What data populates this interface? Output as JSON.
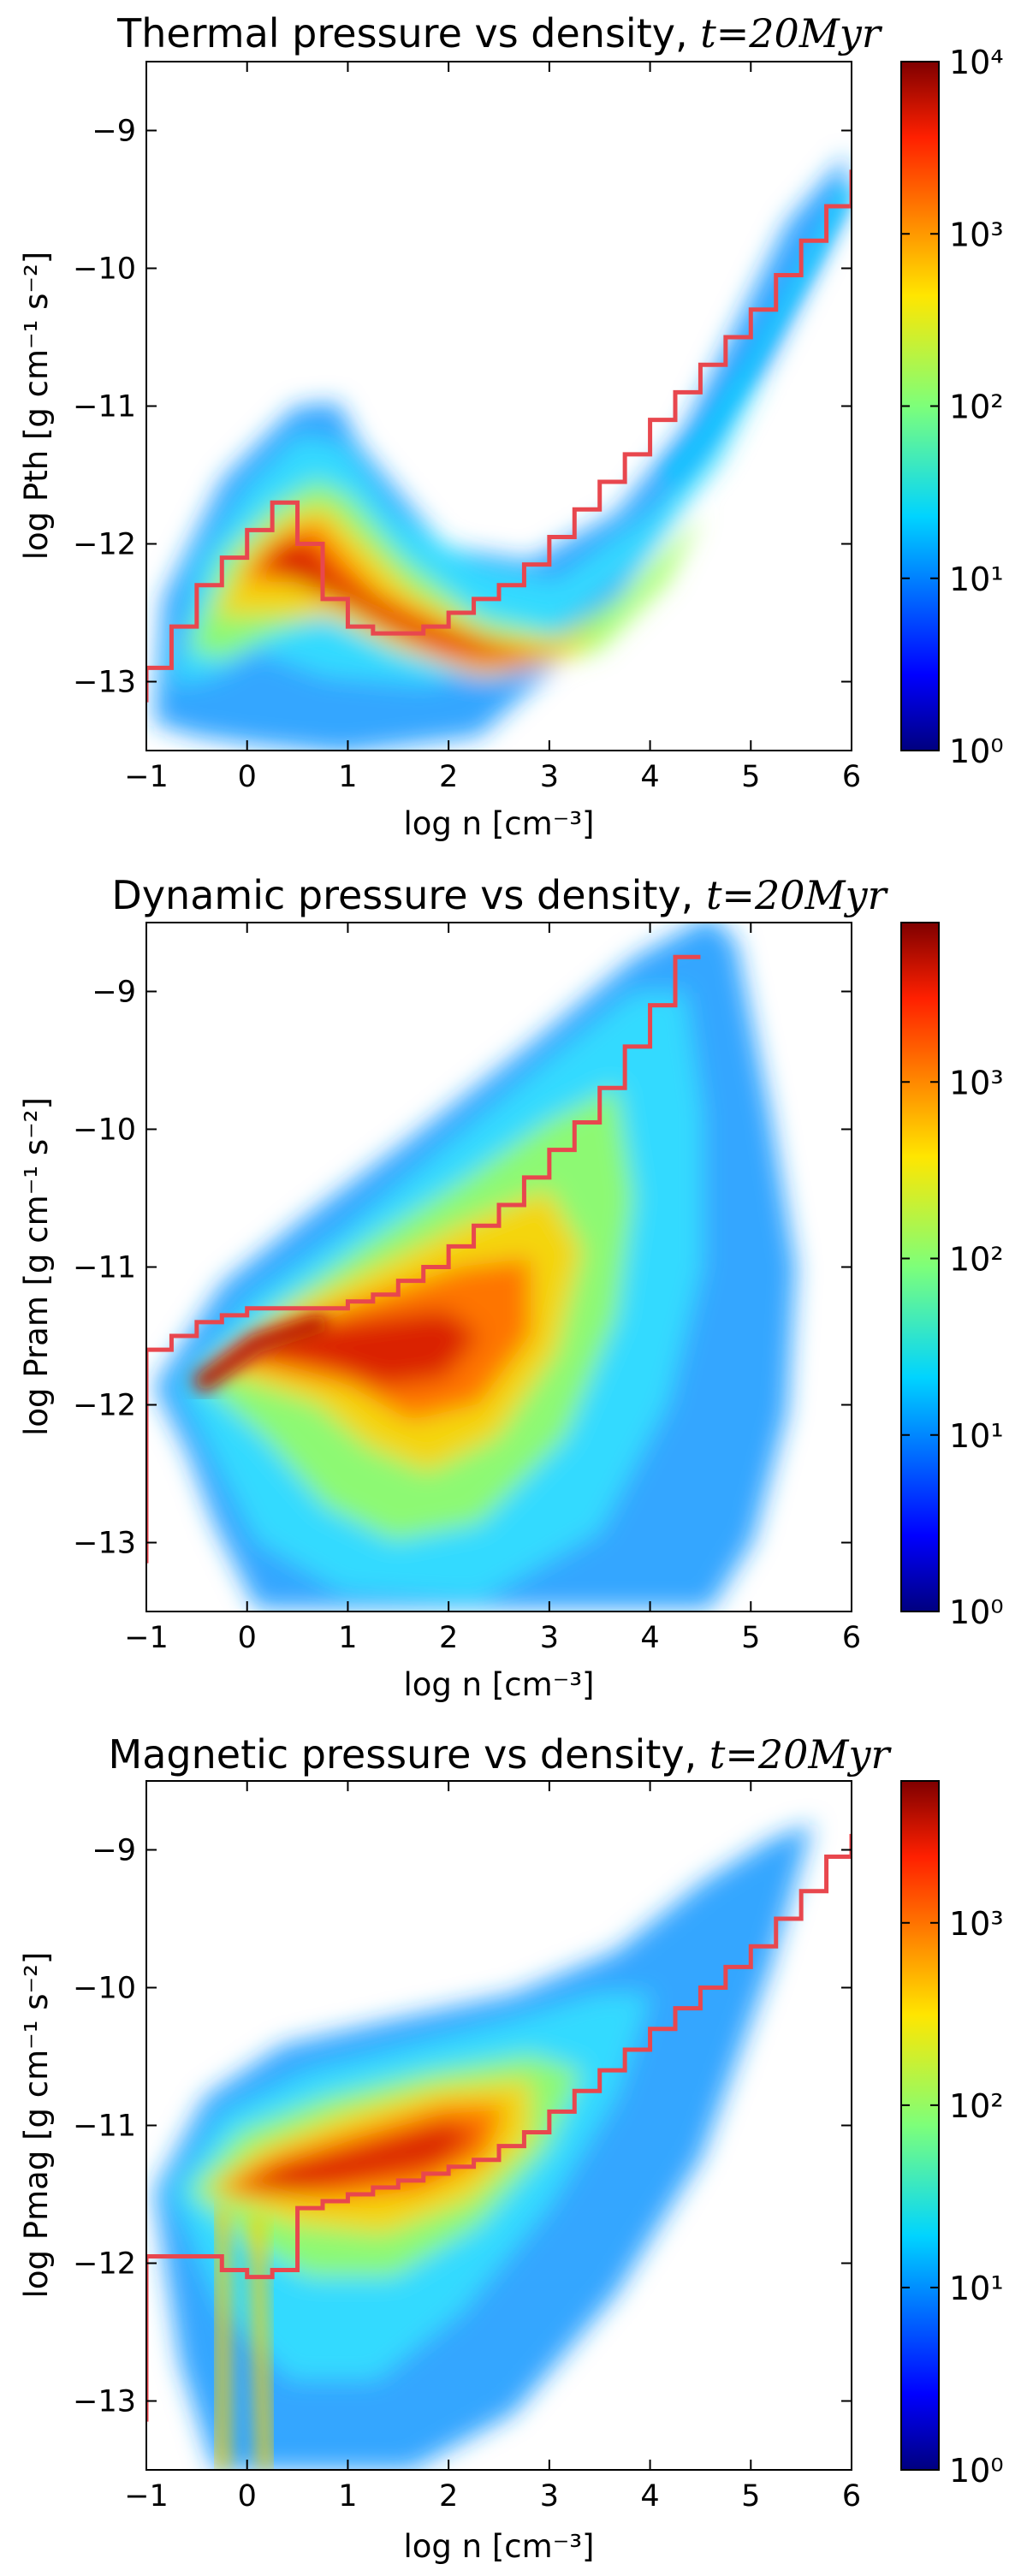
{
  "chart_data": [
    {
      "type": "heatmap",
      "title": "Thermal pressure vs density, t = 20Myr",
      "title_text": "Thermal pressure vs density,",
      "title_math": "t=20Myr",
      "xlabel": "log n [cm⁻³]",
      "ylabel": "log Pth [g cm⁻¹ s⁻²]",
      "xlim": [
        -1,
        6
      ],
      "ylim": [
        -13.5,
        -8.5
      ],
      "xticks": [
        "−1",
        "0",
        "1",
        "2",
        "3",
        "4",
        "5",
        "6"
      ],
      "yticks": [
        "−13",
        "−12",
        "−11",
        "−10",
        "−9"
      ],
      "colorbar": {
        "scale": "log",
        "range": [
          1,
          10000
        ],
        "labels": [
          "10⁰",
          "10¹",
          "10²",
          "10³",
          "10⁴"
        ]
      },
      "median_line_color": "#e8474e",
      "median_line": {
        "x": [
          -1,
          -0.75,
          -0.5,
          -0.25,
          0,
          0.25,
          0.5,
          0.75,
          1,
          1.25,
          1.5,
          1.75,
          2,
          2.25,
          2.5,
          2.75,
          3,
          3.25,
          3.5,
          3.75,
          4,
          4.25,
          4.5,
          4.75,
          5,
          5.25,
          5.5,
          5.75,
          6
        ],
        "y": [
          -12.9,
          -12.6,
          -12.3,
          -12.1,
          -11.9,
          -11.7,
          -12.0,
          -12.4,
          -12.6,
          -12.65,
          -12.65,
          -12.6,
          -12.5,
          -12.4,
          -12.3,
          -12.15,
          -11.95,
          -11.75,
          -11.55,
          -11.35,
          -11.1,
          -10.9,
          -10.7,
          -10.5,
          -10.3,
          -10.05,
          -9.8,
          -9.55,
          -9.3
        ]
      }
    },
    {
      "type": "heatmap",
      "title": "Dynamic pressure vs density, t = 20Myr",
      "title_text": "Dynamic pressure vs density,",
      "title_math": "t=20Myr",
      "xlabel": "log n [cm⁻³]",
      "ylabel": "log Pram [g cm⁻¹ s⁻²]",
      "xlim": [
        -1,
        6
      ],
      "ylim": [
        -13.5,
        -8.5
      ],
      "xticks": [
        "−1",
        "0",
        "1",
        "2",
        "3",
        "4",
        "5",
        "6"
      ],
      "yticks": [
        "−13",
        "−12",
        "−11",
        "−10",
        "−9"
      ],
      "colorbar": {
        "scale": "log",
        "range": [
          1,
          8000
        ],
        "labels": [
          "10⁰",
          "10¹",
          "10²",
          "10³"
        ]
      },
      "median_line_color": "#e8474e",
      "median_line": {
        "x": [
          -1,
          -0.75,
          -0.5,
          -0.25,
          0,
          0.25,
          0.5,
          0.75,
          1,
          1.25,
          1.5,
          1.75,
          2,
          2.25,
          2.5,
          2.75,
          3,
          3.25,
          3.5,
          3.75,
          4,
          4.25
        ],
        "y": [
          -11.6,
          -11.5,
          -11.4,
          -11.35,
          -11.3,
          -11.3,
          -11.3,
          -11.3,
          -11.25,
          -11.2,
          -11.1,
          -11.0,
          -10.85,
          -10.7,
          -10.55,
          -10.35,
          -10.15,
          -9.95,
          -9.7,
          -9.4,
          -9.1,
          -8.75
        ]
      }
    },
    {
      "type": "heatmap",
      "title": "Magnetic pressure vs density, t = 20Myr",
      "title_text": "Magnetic pressure vs density,",
      "title_math": "t=20Myr",
      "xlabel": "log n [cm⁻³]",
      "ylabel": "log Pmag [g cm⁻¹ s⁻²]",
      "xlim": [
        -1,
        6
      ],
      "ylim": [
        -13.5,
        -8.5
      ],
      "xticks": [
        "−1",
        "0",
        "1",
        "2",
        "3",
        "4",
        "5",
        "6"
      ],
      "yticks": [
        "−13",
        "−12",
        "−11",
        "−10",
        "−9"
      ],
      "colorbar": {
        "scale": "log",
        "range": [
          1,
          6000
        ],
        "labels": [
          "10⁰",
          "10¹",
          "10²",
          "10³"
        ]
      },
      "median_line_color": "#e8474e",
      "median_line": {
        "x": [
          -1,
          -0.75,
          -0.5,
          -0.25,
          0,
          0.25,
          0.5,
          0.75,
          1,
          1.25,
          1.5,
          1.75,
          2,
          2.25,
          2.5,
          2.75,
          3,
          3.25,
          3.5,
          3.75,
          4,
          4.25,
          4.5,
          4.75,
          5,
          5.25,
          5.5,
          5.75,
          6
        ],
        "y": [
          -11.95,
          -11.95,
          -11.95,
          -12.05,
          -12.1,
          -12.05,
          -11.6,
          -11.55,
          -11.5,
          -11.45,
          -11.4,
          -11.35,
          -11.3,
          -11.25,
          -11.15,
          -11.05,
          -10.9,
          -10.75,
          -10.6,
          -10.45,
          -10.3,
          -10.15,
          -10.0,
          -9.85,
          -9.7,
          -9.5,
          -9.3,
          -9.05,
          -8.9
        ]
      }
    }
  ]
}
